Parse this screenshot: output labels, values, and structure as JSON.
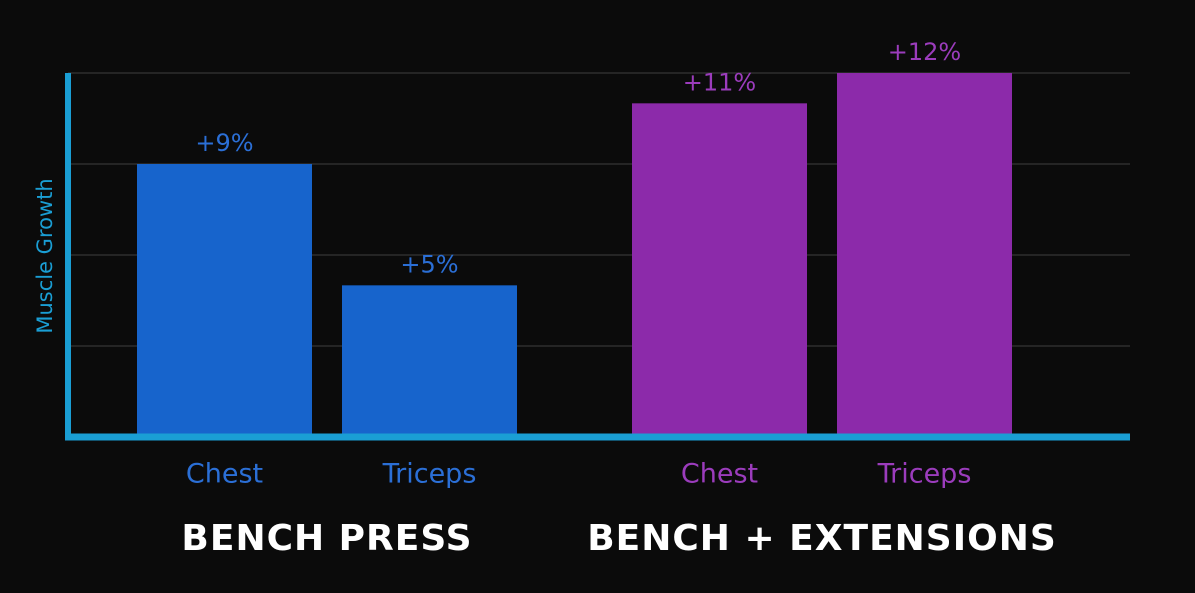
{
  "chart_data": {
    "type": "bar",
    "y_label": "Muscle Growth",
    "ylim": [
      0,
      12
    ],
    "yticks": [
      0,
      3,
      6,
      9,
      12
    ],
    "grid": true,
    "axis_color": "#1a9ed4",
    "series": [
      {
        "name": "BENCH PRESS",
        "color": "#1764cc",
        "label_color": "#2b6fd6",
        "categories": [
          "Chest",
          "Triceps"
        ],
        "values": [
          9,
          5
        ],
        "value_labels": [
          "+9%",
          "+5%"
        ]
      },
      {
        "name": "BENCH + EXTENSIONS",
        "color": "#8c2aaa",
        "label_color": "#9b3cbc",
        "categories": [
          "Chest",
          "Triceps"
        ],
        "values": [
          11,
          12
        ],
        "value_labels": [
          "+11%",
          "+12%"
        ]
      }
    ]
  }
}
